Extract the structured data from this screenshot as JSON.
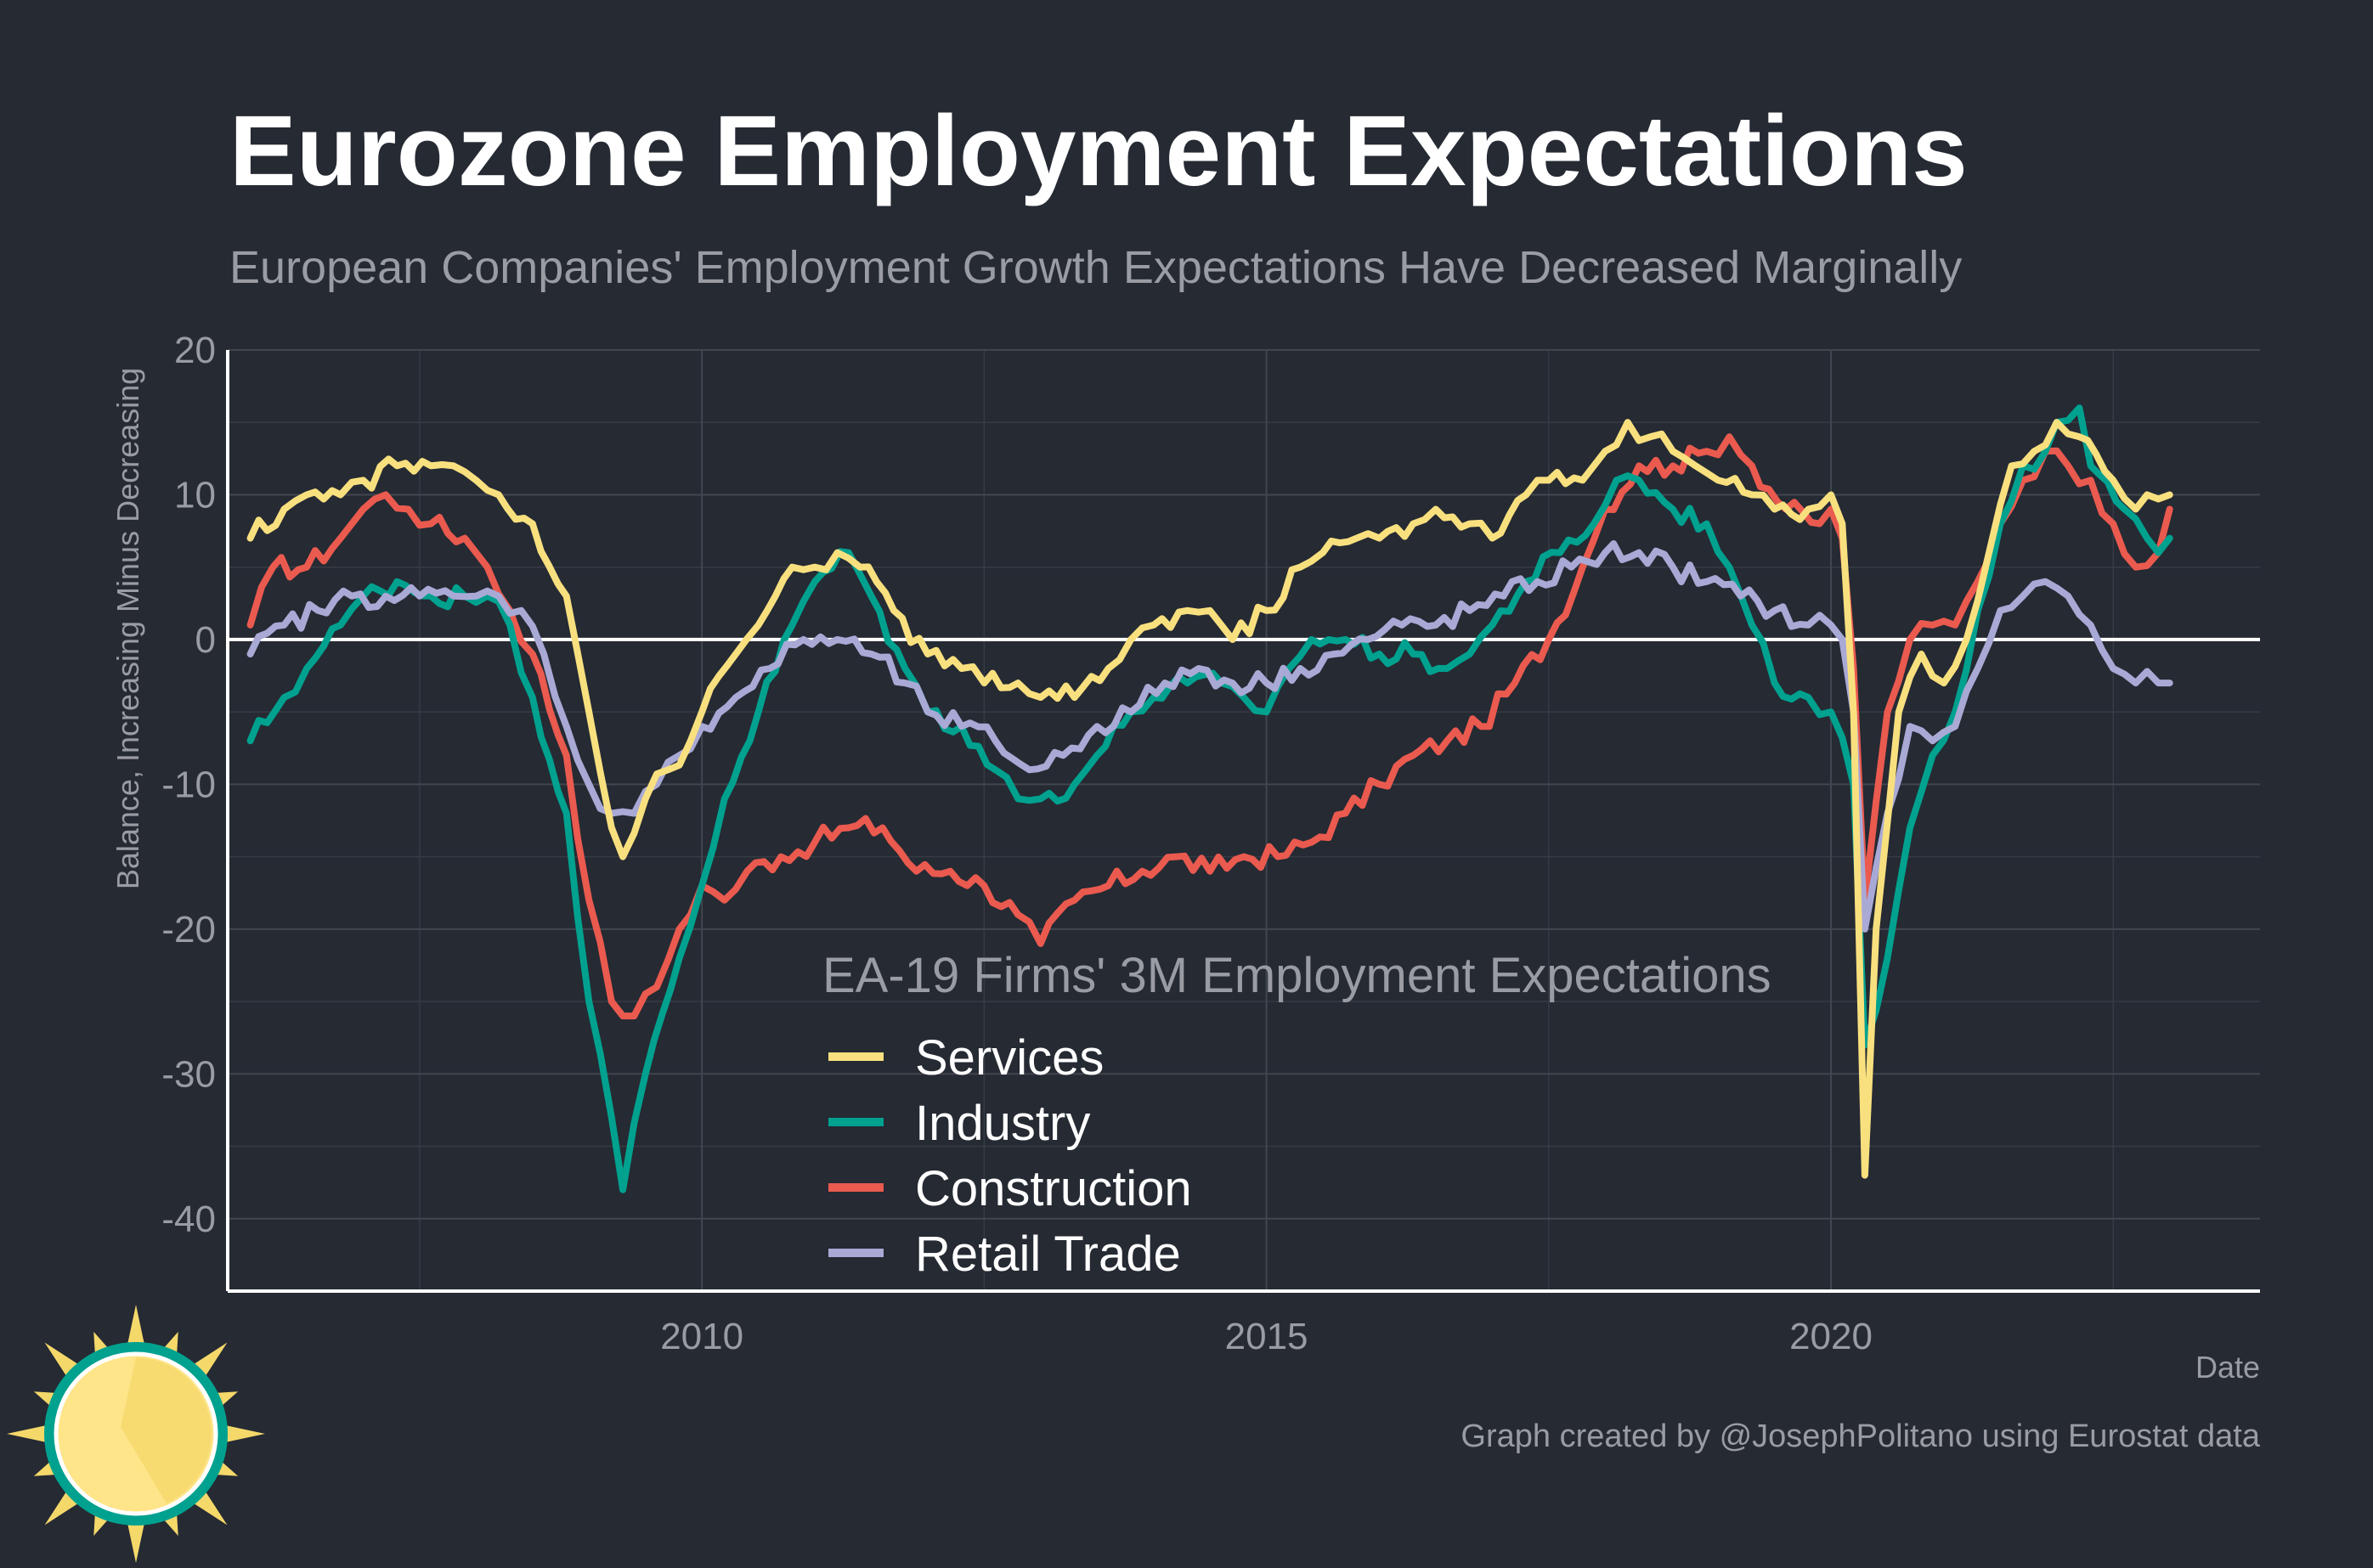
{
  "title": "Eurozone Employment Expectations",
  "subtitle": "European Companies' Employment Growth Expectations Have Decreased Marginally",
  "caption": "Graph created by @JosephPolitano using Eurostat data",
  "colors": {
    "background": "#252a33",
    "services": "#f9e07f",
    "industry": "#00a18f",
    "construction": "#ea5a4f",
    "retail": "#a9a9d6"
  },
  "logo": {
    "icon": "sun-icon"
  },
  "chart_data": {
    "type": "line",
    "xlabel": "Date",
    "ylabel": "Balance, Increasing Minus Decreasing",
    "xlim": [
      2005.8,
      2023.8
    ],
    "ylim": [
      -45,
      20
    ],
    "x_ticks": [
      {
        "value": 2010,
        "label": "2010"
      },
      {
        "value": 2015,
        "label": "2015"
      },
      {
        "value": 2020,
        "label": "2020"
      }
    ],
    "y_ticks": [
      {
        "value": 20,
        "label": "20"
      },
      {
        "value": 10,
        "label": "10"
      },
      {
        "value": 0,
        "label": "0"
      },
      {
        "value": -10,
        "label": "-10"
      },
      {
        "value": -20,
        "label": "-20"
      },
      {
        "value": -30,
        "label": "-30"
      },
      {
        "value": -40,
        "label": "-40"
      }
    ],
    "grid": true,
    "zero_line": true,
    "legend": {
      "title": "EA-19 Firms' 3M Employment Expectations",
      "position": "bottom-center"
    },
    "series": [
      {
        "name": "Services",
        "color": "#f9e07f",
        "points": [
          [
            2006.0,
            7
          ],
          [
            2006.3,
            9
          ],
          [
            2006.5,
            10
          ],
          [
            2006.8,
            10
          ],
          [
            2007.0,
            11
          ],
          [
            2007.3,
            12
          ],
          [
            2007.6,
            12
          ],
          [
            2007.8,
            12
          ],
          [
            2008.0,
            11
          ],
          [
            2008.2,
            10
          ],
          [
            2008.5,
            8
          ],
          [
            2008.8,
            3
          ],
          [
            2009.0,
            -5
          ],
          [
            2009.2,
            -13
          ],
          [
            2009.3,
            -15
          ],
          [
            2009.5,
            -11
          ],
          [
            2009.7,
            -9
          ],
          [
            2009.9,
            -7
          ],
          [
            2010.0,
            -5
          ],
          [
            2010.3,
            -1
          ],
          [
            2010.5,
            1
          ],
          [
            2010.8,
            5
          ],
          [
            2011.0,
            5
          ],
          [
            2011.2,
            6
          ],
          [
            2011.4,
            5
          ],
          [
            2011.7,
            2
          ],
          [
            2012.0,
            -1
          ],
          [
            2012.3,
            -2
          ],
          [
            2012.5,
            -3
          ],
          [
            2012.8,
            -3
          ],
          [
            2013.0,
            -4
          ],
          [
            2013.3,
            -4
          ],
          [
            2013.6,
            -2
          ],
          [
            2013.8,
            0
          ],
          [
            2014.0,
            1
          ],
          [
            2014.3,
            2
          ],
          [
            2014.5,
            2
          ],
          [
            2014.7,
            0
          ],
          [
            2015.0,
            2
          ],
          [
            2015.3,
            5
          ],
          [
            2015.5,
            6
          ],
          [
            2015.8,
            7
          ],
          [
            2016.0,
            7
          ],
          [
            2016.3,
            8
          ],
          [
            2016.5,
            9
          ],
          [
            2016.8,
            8
          ],
          [
            2017.0,
            7
          ],
          [
            2017.3,
            10
          ],
          [
            2017.5,
            11
          ],
          [
            2017.8,
            11
          ],
          [
            2018.0,
            13
          ],
          [
            2018.2,
            15
          ],
          [
            2018.4,
            14
          ],
          [
            2018.6,
            13
          ],
          [
            2018.8,
            12
          ],
          [
            2019.0,
            11
          ],
          [
            2019.3,
            10
          ],
          [
            2019.5,
            9
          ],
          [
            2019.8,
            9
          ],
          [
            2020.0,
            10
          ],
          [
            2020.1,
            8
          ],
          [
            2020.2,
            -5
          ],
          [
            2020.3,
            -37
          ],
          [
            2020.4,
            -20
          ],
          [
            2020.6,
            -5
          ],
          [
            2020.8,
            -1
          ],
          [
            2021.0,
            -3
          ],
          [
            2021.2,
            0
          ],
          [
            2021.4,
            6
          ],
          [
            2021.6,
            12
          ],
          [
            2021.8,
            13
          ],
          [
            2022.0,
            15
          ],
          [
            2022.2,
            14
          ],
          [
            2022.5,
            11
          ],
          [
            2022.7,
            9
          ],
          [
            2022.8,
            10
          ],
          [
            2023.0,
            10
          ]
        ]
      },
      {
        "name": "Industry",
        "color": "#00a18f",
        "points": [
          [
            2006.0,
            -7
          ],
          [
            2006.3,
            -4
          ],
          [
            2006.5,
            -2
          ],
          [
            2006.8,
            1
          ],
          [
            2007.0,
            3
          ],
          [
            2007.3,
            4
          ],
          [
            2007.6,
            3
          ],
          [
            2007.9,
            3
          ],
          [
            2008.1,
            3
          ],
          [
            2008.3,
            1
          ],
          [
            2008.5,
            -4
          ],
          [
            2008.8,
            -12
          ],
          [
            2009.0,
            -25
          ],
          [
            2009.2,
            -33
          ],
          [
            2009.3,
            -38
          ],
          [
            2009.5,
            -30
          ],
          [
            2009.8,
            -22
          ],
          [
            2010.0,
            -17
          ],
          [
            2010.2,
            -11
          ],
          [
            2010.5,
            -5
          ],
          [
            2010.8,
            1
          ],
          [
            2011.0,
            4
          ],
          [
            2011.3,
            6
          ],
          [
            2011.5,
            3
          ],
          [
            2011.8,
            -2
          ],
          [
            2012.0,
            -5
          ],
          [
            2012.3,
            -6
          ],
          [
            2012.6,
            -9
          ],
          [
            2012.8,
            -11
          ],
          [
            2013.0,
            -11
          ],
          [
            2013.3,
            -10
          ],
          [
            2013.5,
            -8
          ],
          [
            2013.8,
            -5
          ],
          [
            2014.0,
            -4
          ],
          [
            2014.3,
            -3
          ],
          [
            2014.6,
            -3
          ],
          [
            2014.8,
            -4
          ],
          [
            2015.0,
            -5
          ],
          [
            2015.2,
            -2
          ],
          [
            2015.4,
            0
          ],
          [
            2015.7,
            0
          ],
          [
            2016.0,
            -1
          ],
          [
            2016.3,
            -1
          ],
          [
            2016.6,
            -2
          ],
          [
            2016.8,
            -1
          ],
          [
            2017.0,
            1
          ],
          [
            2017.3,
            4
          ],
          [
            2017.6,
            6
          ],
          [
            2017.9,
            8
          ],
          [
            2018.1,
            11
          ],
          [
            2018.3,
            11
          ],
          [
            2018.6,
            9
          ],
          [
            2018.9,
            8
          ],
          [
            2019.1,
            5
          ],
          [
            2019.3,
            1
          ],
          [
            2019.5,
            -3
          ],
          [
            2019.8,
            -4
          ],
          [
            2020.0,
            -5
          ],
          [
            2020.2,
            -10
          ],
          [
            2020.3,
            -28
          ],
          [
            2020.5,
            -22
          ],
          [
            2020.7,
            -13
          ],
          [
            2020.9,
            -8
          ],
          [
            2021.1,
            -5
          ],
          [
            2021.3,
            2
          ],
          [
            2021.5,
            8
          ],
          [
            2021.7,
            12
          ],
          [
            2021.9,
            13
          ],
          [
            2022.0,
            15
          ],
          [
            2022.2,
            16
          ],
          [
            2022.3,
            12
          ],
          [
            2022.6,
            9
          ],
          [
            2022.8,
            7
          ],
          [
            2022.9,
            6
          ],
          [
            2023.0,
            7
          ]
        ]
      },
      {
        "name": "Construction",
        "color": "#ea5a4f",
        "points": [
          [
            2006.0,
            1
          ],
          [
            2006.2,
            5
          ],
          [
            2006.5,
            5
          ],
          [
            2006.8,
            7
          ],
          [
            2007.0,
            9
          ],
          [
            2007.2,
            10
          ],
          [
            2007.4,
            9
          ],
          [
            2007.6,
            8
          ],
          [
            2007.9,
            7
          ],
          [
            2008.1,
            5
          ],
          [
            2008.3,
            2
          ],
          [
            2008.5,
            -1
          ],
          [
            2008.8,
            -8
          ],
          [
            2009.0,
            -18
          ],
          [
            2009.2,
            -25
          ],
          [
            2009.4,
            -26
          ],
          [
            2009.6,
            -24
          ],
          [
            2009.8,
            -20
          ],
          [
            2010.0,
            -17
          ],
          [
            2010.2,
            -18
          ],
          [
            2010.4,
            -16
          ],
          [
            2010.7,
            -15
          ],
          [
            2011.0,
            -14
          ],
          [
            2011.3,
            -13
          ],
          [
            2011.6,
            -13
          ],
          [
            2011.9,
            -16
          ],
          [
            2012.2,
            -16
          ],
          [
            2012.5,
            -17
          ],
          [
            2012.8,
            -19
          ],
          [
            2013.0,
            -21
          ],
          [
            2013.3,
            -18
          ],
          [
            2013.6,
            -17
          ],
          [
            2013.9,
            -16
          ],
          [
            2014.2,
            -15
          ],
          [
            2014.5,
            -16
          ],
          [
            2014.8,
            -15
          ],
          [
            2015.1,
            -15
          ],
          [
            2015.4,
            -14
          ],
          [
            2015.7,
            -12
          ],
          [
            2016.0,
            -10
          ],
          [
            2016.3,
            -8
          ],
          [
            2016.6,
            -7
          ],
          [
            2016.9,
            -6
          ],
          [
            2017.2,
            -3
          ],
          [
            2017.5,
            0
          ],
          [
            2017.8,
            5
          ],
          [
            2018.0,
            9
          ],
          [
            2018.3,
            12
          ],
          [
            2018.6,
            12
          ],
          [
            2018.9,
            13
          ],
          [
            2019.1,
            14
          ],
          [
            2019.3,
            12
          ],
          [
            2019.6,
            9
          ],
          [
            2019.9,
            8
          ],
          [
            2020.0,
            9
          ],
          [
            2020.1,
            7
          ],
          [
            2020.2,
            -2
          ],
          [
            2020.3,
            -18
          ],
          [
            2020.5,
            -5
          ],
          [
            2020.7,
            0
          ],
          [
            2020.9,
            1
          ],
          [
            2021.1,
            1
          ],
          [
            2021.3,
            4
          ],
          [
            2021.5,
            8
          ],
          [
            2021.7,
            11
          ],
          [
            2021.9,
            13
          ],
          [
            2022.1,
            12
          ],
          [
            2022.3,
            11
          ],
          [
            2022.5,
            8
          ],
          [
            2022.7,
            5
          ],
          [
            2022.9,
            6
          ],
          [
            2023.0,
            9
          ]
        ]
      },
      {
        "name": "Retail Trade",
        "color": "#a9a9d6",
        "points": [
          [
            2006.0,
            -1
          ],
          [
            2006.3,
            1
          ],
          [
            2006.6,
            2
          ],
          [
            2006.9,
            3
          ],
          [
            2007.2,
            3
          ],
          [
            2007.5,
            3
          ],
          [
            2007.8,
            3
          ],
          [
            2008.0,
            3
          ],
          [
            2008.2,
            3
          ],
          [
            2008.4,
            2
          ],
          [
            2008.6,
            -1
          ],
          [
            2008.8,
            -6
          ],
          [
            2009.0,
            -10
          ],
          [
            2009.2,
            -12
          ],
          [
            2009.4,
            -12
          ],
          [
            2009.6,
            -10
          ],
          [
            2009.8,
            -8
          ],
          [
            2010.0,
            -6
          ],
          [
            2010.3,
            -4
          ],
          [
            2010.6,
            -2
          ],
          [
            2010.9,
            0
          ],
          [
            2011.2,
            0
          ],
          [
            2011.5,
            -1
          ],
          [
            2011.8,
            -3
          ],
          [
            2012.0,
            -5
          ],
          [
            2012.3,
            -6
          ],
          [
            2012.6,
            -7
          ],
          [
            2012.9,
            -9
          ],
          [
            2013.2,
            -8
          ],
          [
            2013.5,
            -6
          ],
          [
            2013.8,
            -5
          ],
          [
            2014.1,
            -3
          ],
          [
            2014.4,
            -2
          ],
          [
            2014.7,
            -3
          ],
          [
            2015.0,
            -3
          ],
          [
            2015.3,
            -2
          ],
          [
            2015.6,
            -1
          ],
          [
            2015.9,
            0
          ],
          [
            2016.2,
            1
          ],
          [
            2016.5,
            1
          ],
          [
            2016.8,
            2
          ],
          [
            2017.1,
            3
          ],
          [
            2017.4,
            4
          ],
          [
            2017.7,
            5
          ],
          [
            2018.0,
            6
          ],
          [
            2018.3,
            6
          ],
          [
            2018.6,
            5
          ],
          [
            2018.9,
            4
          ],
          [
            2019.2,
            3
          ],
          [
            2019.5,
            2
          ],
          [
            2019.8,
            1
          ],
          [
            2020.0,
            1
          ],
          [
            2020.1,
            0
          ],
          [
            2020.2,
            -5
          ],
          [
            2020.3,
            -20
          ],
          [
            2020.5,
            -12
          ],
          [
            2020.7,
            -6
          ],
          [
            2020.9,
            -7
          ],
          [
            2021.1,
            -6
          ],
          [
            2021.3,
            -2
          ],
          [
            2021.5,
            2
          ],
          [
            2021.7,
            3
          ],
          [
            2021.9,
            4
          ],
          [
            2022.1,
            3
          ],
          [
            2022.3,
            1
          ],
          [
            2022.5,
            -2
          ],
          [
            2022.7,
            -3
          ],
          [
            2022.9,
            -3
          ],
          [
            2023.0,
            -3
          ]
        ]
      }
    ]
  }
}
